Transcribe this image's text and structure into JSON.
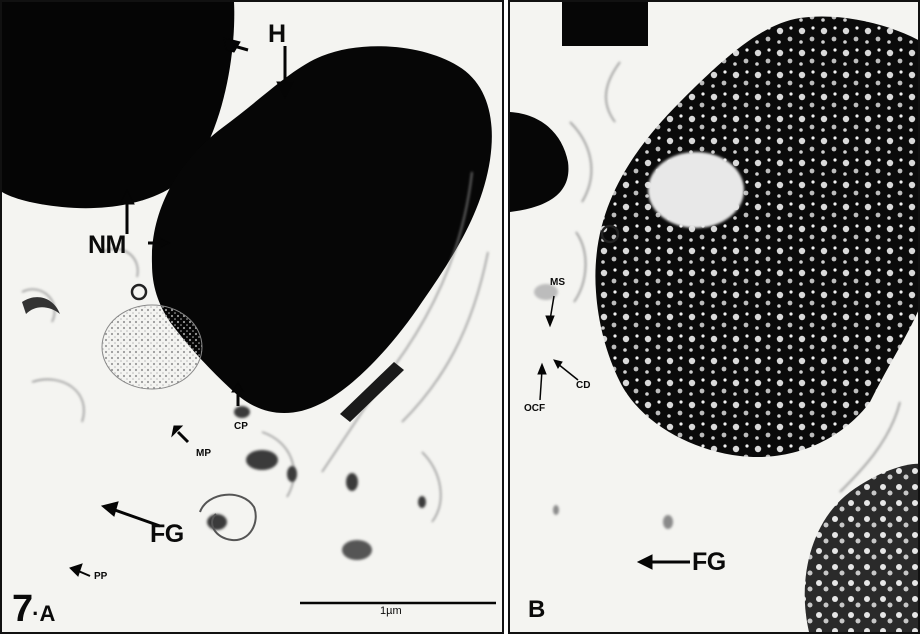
{
  "figure": {
    "panel_a": {
      "number": "7",
      "dot": "·",
      "letter": "A",
      "labels": {
        "h": "H",
        "nm": "NM",
        "cp": "CP",
        "mp": "MP",
        "fg": "FG",
        "pp": "PP"
      },
      "scale_bar": "1µm"
    },
    "panel_b": {
      "letter": "B",
      "labels": {
        "ms": "MS",
        "cd": "CD",
        "ocf": "OCF",
        "fg": "FG"
      }
    }
  }
}
